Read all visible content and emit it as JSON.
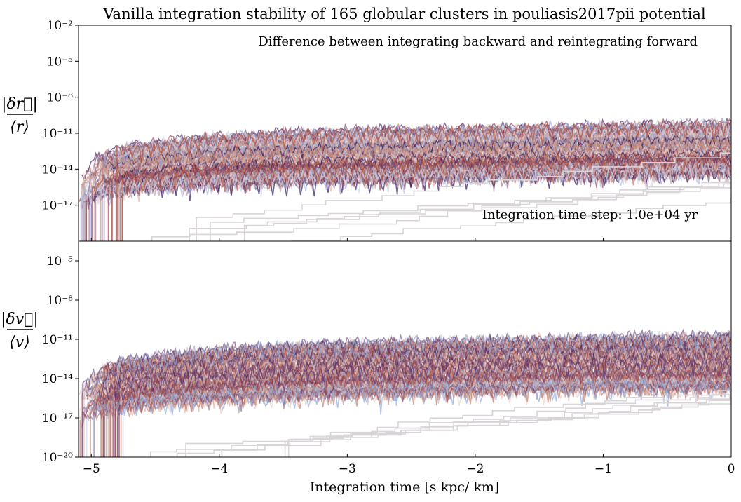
{
  "chart_data": {
    "type": "line",
    "title": "Vanilla integration stability of 165 globular clusters in pouliasis2017pii potential",
    "xlabel": "Integration time [s kpc/ km]",
    "xlim": [
      -5.1,
      0
    ],
    "xticks": [
      -5,
      -4,
      -3,
      -2,
      -1,
      0
    ],
    "xtick_labels": [
      "−5",
      "−4",
      "−3",
      "−2",
      "−1",
      "0"
    ],
    "n_series": 165,
    "colormap": [
      "#2e1a5e",
      "#5a2f6e",
      "#8f3a50",
      "#b55a45",
      "#cc8e78",
      "#e3c4b8",
      "#d0d0e0",
      "#8fa8d8"
    ],
    "panels": [
      {
        "id": "position",
        "ylabel_numerator": "|δr⃗|",
        "ylabel_denominator": "⟨r⟩",
        "ylim_log10": [
          -20,
          -2
        ],
        "yticks_log10": [
          -2,
          -5,
          -8,
          -11,
          -14,
          -17
        ],
        "ytick_labels": [
          "10⁻²",
          "10⁻⁵",
          "10⁻⁸",
          "10⁻¹¹",
          "10⁻¹⁴",
          "10⁻¹⁷"
        ],
        "annotations": [
          {
            "text": "Difference between integrating backward and reintegrating forward",
            "position": "top-right"
          },
          {
            "text": "Integration time step: 1.0e+04 yr",
            "position": "bottom-right"
          }
        ],
        "envelope_log10": {
          "x": [
            -5.1,
            -4.9,
            -4.7,
            -4.4,
            -4.0,
            -3.5,
            -3.0,
            -2.5,
            -2.0,
            -1.5,
            -1.0,
            -0.5,
            0
          ],
          "median": [
            -15.5,
            -13.9,
            -13.2,
            -12.8,
            -12.5,
            -12.2,
            -12.0,
            -11.9,
            -11.8,
            -11.7,
            -11.6,
            -11.5,
            -11.5
          ],
          "upper": [
            -14.5,
            -12.7,
            -12.2,
            -11.8,
            -11.4,
            -11.1,
            -10.9,
            -10.8,
            -10.7,
            -10.6,
            -10.5,
            -10.4,
            -10.3
          ],
          "lower": [
            -17.0,
            -16.2,
            -15.8,
            -15.5,
            -15.3,
            -15.1,
            -15.0,
            -14.9,
            -14.8,
            -14.7,
            -14.6,
            -14.5,
            -14.4
          ]
        }
      },
      {
        "id": "velocity",
        "ylabel_numerator": "|δv⃗|",
        "ylabel_denominator": "⟨v⟩",
        "ylim_log10": [
          -20,
          -3.5
        ],
        "yticks_log10": [
          -5,
          -8,
          -11,
          -14,
          -17,
          -20
        ],
        "ytick_labels": [
          "10⁻⁵",
          "10⁻⁸",
          "10⁻¹¹",
          "10⁻¹⁴",
          "10⁻¹⁷",
          "10⁻²⁰"
        ],
        "annotations": [],
        "envelope_log10": {
          "x": [
            -5.1,
            -4.9,
            -4.7,
            -4.4,
            -4.0,
            -3.5,
            -3.0,
            -2.5,
            -2.0,
            -1.5,
            -1.0,
            -0.5,
            0
          ],
          "median": [
            -16.0,
            -14.3,
            -13.8,
            -13.4,
            -13.1,
            -12.9,
            -12.7,
            -12.6,
            -12.5,
            -12.4,
            -12.4,
            -12.3,
            -12.3
          ],
          "upper": [
            -15.0,
            -13.2,
            -12.7,
            -12.3,
            -11.9,
            -11.6,
            -11.4,
            -11.3,
            -11.2,
            -11.1,
            -11.0,
            -10.9,
            -10.8
          ],
          "lower": [
            -17.3,
            -16.5,
            -16.1,
            -15.8,
            -15.6,
            -15.4,
            -15.2,
            -15.1,
            -15.0,
            -14.9,
            -14.8,
            -14.8,
            -14.7
          ]
        }
      }
    ]
  }
}
